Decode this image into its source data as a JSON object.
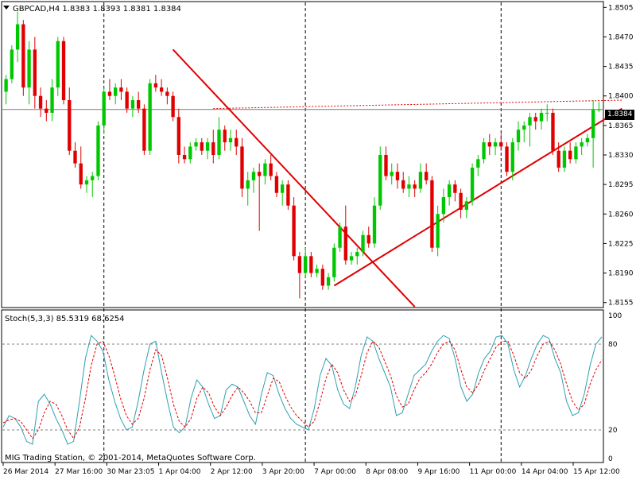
{
  "header": {
    "symbol_line": "GBPCAD,H4  1.8383 1.8393 1.8381 1.8384",
    "dropdown_icon": "triangle-down-icon"
  },
  "current_price_label": "1.8384",
  "indicator": {
    "label": "Stoch(5,3,3) 85.5319 68.6254",
    "levels": [
      "100",
      "80",
      "20",
      "0"
    ]
  },
  "copyright": "MIG Trading Station, © 2001-2014, MetaQuotes Software Corp.",
  "colors": {
    "background": "#ffffff",
    "bull": "#00c800",
    "bear": "#e00000",
    "trendline": "#e00000",
    "grid": "#000000",
    "stoch_main": "#2fa0b0",
    "stoch_signal": "#e00000",
    "price_line": "#708070"
  },
  "chart_data": {
    "type": "candlestick",
    "symbol": "GBPCAD",
    "timeframe": "H4",
    "ohlc_header": {
      "open": 1.8383,
      "high": 1.8393,
      "low": 1.8381,
      "close": 1.8384
    },
    "y_ticks": [
      "1.8505",
      "1.8470",
      "1.8435",
      "1.8400",
      "1.8365",
      "1.8330",
      "1.8295",
      "1.8260",
      "1.8225",
      "1.8190",
      "1.8155"
    ],
    "ylim": [
      1.815,
      1.851
    ],
    "x_ticks": [
      "26 Mar 2014",
      "27 Mar 16:00",
      "30 Mar 23:05",
      "1 Apr 04:00",
      "2 Apr 12:00",
      "3 Apr 20:00",
      "7 Apr 00:00",
      "8 Apr 08:00",
      "9 Apr 16:00",
      "11 Apr 00:00",
      "14 Apr 04:00",
      "15 Apr 12:00"
    ],
    "period_separators_after": [
      "27 Mar 16:00",
      "3 Apr 20:00",
      "11 Apr 00:00"
    ],
    "candles": [
      {
        "o": 1.8405,
        "h": 1.8425,
        "l": 1.839,
        "c": 1.842
      },
      {
        "o": 1.842,
        "h": 1.846,
        "l": 1.8415,
        "c": 1.8455
      },
      {
        "o": 1.8455,
        "h": 1.85,
        "l": 1.844,
        "c": 1.8485
      },
      {
        "o": 1.8485,
        "h": 1.849,
        "l": 1.84,
        "c": 1.841
      },
      {
        "o": 1.841,
        "h": 1.8465,
        "l": 1.839,
        "c": 1.8455
      },
      {
        "o": 1.8455,
        "h": 1.847,
        "l": 1.8385,
        "c": 1.84
      },
      {
        "o": 1.84,
        "h": 1.841,
        "l": 1.8375,
        "c": 1.8385
      },
      {
        "o": 1.8385,
        "h": 1.8395,
        "l": 1.837,
        "c": 1.838
      },
      {
        "o": 1.838,
        "h": 1.842,
        "l": 1.837,
        "c": 1.841
      },
      {
        "o": 1.841,
        "h": 1.847,
        "l": 1.84,
        "c": 1.8465
      },
      {
        "o": 1.8465,
        "h": 1.847,
        "l": 1.839,
        "c": 1.8395
      },
      {
        "o": 1.8395,
        "h": 1.841,
        "l": 1.833,
        "c": 1.8335
      },
      {
        "o": 1.8335,
        "h": 1.8345,
        "l": 1.8315,
        "c": 1.832
      },
      {
        "o": 1.832,
        "h": 1.834,
        "l": 1.829,
        "c": 1.8295
      },
      {
        "o": 1.8295,
        "h": 1.8305,
        "l": 1.8285,
        "c": 1.83
      },
      {
        "o": 1.83,
        "h": 1.831,
        "l": 1.828,
        "c": 1.8305
      },
      {
        "o": 1.8305,
        "h": 1.837,
        "l": 1.83,
        "c": 1.8365
      },
      {
        "o": 1.8365,
        "h": 1.841,
        "l": 1.8355,
        "c": 1.8405
      },
      {
        "o": 1.8405,
        "h": 1.842,
        "l": 1.8395,
        "c": 1.84
      },
      {
        "o": 1.84,
        "h": 1.8415,
        "l": 1.839,
        "c": 1.841
      },
      {
        "o": 1.841,
        "h": 1.842,
        "l": 1.8395,
        "c": 1.8405
      },
      {
        "o": 1.8405,
        "h": 1.841,
        "l": 1.838,
        "c": 1.8385
      },
      {
        "o": 1.8385,
        "h": 1.84,
        "l": 1.8375,
        "c": 1.8395
      },
      {
        "o": 1.8395,
        "h": 1.8405,
        "l": 1.838,
        "c": 1.8385
      },
      {
        "o": 1.8385,
        "h": 1.839,
        "l": 1.833,
        "c": 1.8335
      },
      {
        "o": 1.8335,
        "h": 1.842,
        "l": 1.833,
        "c": 1.8415
      },
      {
        "o": 1.8415,
        "h": 1.8425,
        "l": 1.8405,
        "c": 1.841
      },
      {
        "o": 1.841,
        "h": 1.842,
        "l": 1.84,
        "c": 1.8405
      },
      {
        "o": 1.8405,
        "h": 1.841,
        "l": 1.839,
        "c": 1.84
      },
      {
        "o": 1.84,
        "h": 1.8405,
        "l": 1.837,
        "c": 1.8375
      },
      {
        "o": 1.8375,
        "h": 1.8385,
        "l": 1.832,
        "c": 1.833
      },
      {
        "o": 1.833,
        "h": 1.834,
        "l": 1.832,
        "c": 1.8325
      },
      {
        "o": 1.8325,
        "h": 1.8345,
        "l": 1.832,
        "c": 1.834
      },
      {
        "o": 1.834,
        "h": 1.835,
        "l": 1.8335,
        "c": 1.8345
      },
      {
        "o": 1.8345,
        "h": 1.835,
        "l": 1.833,
        "c": 1.8335
      },
      {
        "o": 1.8335,
        "h": 1.835,
        "l": 1.8325,
        "c": 1.8345
      },
      {
        "o": 1.8345,
        "h": 1.836,
        "l": 1.832,
        "c": 1.833
      },
      {
        "o": 1.833,
        "h": 1.8375,
        "l": 1.8325,
        "c": 1.836
      },
      {
        "o": 1.836,
        "h": 1.8365,
        "l": 1.8335,
        "c": 1.8345
      },
      {
        "o": 1.8345,
        "h": 1.836,
        "l": 1.8335,
        "c": 1.835
      },
      {
        "o": 1.835,
        "h": 1.836,
        "l": 1.833,
        "c": 1.834
      },
      {
        "o": 1.834,
        "h": 1.835,
        "l": 1.828,
        "c": 1.829
      },
      {
        "o": 1.829,
        "h": 1.831,
        "l": 1.827,
        "c": 1.83
      },
      {
        "o": 1.83,
        "h": 1.8315,
        "l": 1.8285,
        "c": 1.831
      },
      {
        "o": 1.831,
        "h": 1.832,
        "l": 1.824,
        "c": 1.8305
      },
      {
        "o": 1.8305,
        "h": 1.8325,
        "l": 1.8295,
        "c": 1.832
      },
      {
        "o": 1.832,
        "h": 1.833,
        "l": 1.83,
        "c": 1.8305
      },
      {
        "o": 1.8305,
        "h": 1.831,
        "l": 1.828,
        "c": 1.8285
      },
      {
        "o": 1.8285,
        "h": 1.83,
        "l": 1.827,
        "c": 1.8295
      },
      {
        "o": 1.8295,
        "h": 1.83,
        "l": 1.8265,
        "c": 1.827
      },
      {
        "o": 1.827,
        "h": 1.828,
        "l": 1.8205,
        "c": 1.821
      },
      {
        "o": 1.821,
        "h": 1.8215,
        "l": 1.816,
        "c": 1.819
      },
      {
        "o": 1.819,
        "h": 1.822,
        "l": 1.8185,
        "c": 1.821
      },
      {
        "o": 1.821,
        "h": 1.8215,
        "l": 1.8185,
        "c": 1.819
      },
      {
        "o": 1.819,
        "h": 1.82,
        "l": 1.8185,
        "c": 1.8195
      },
      {
        "o": 1.8195,
        "h": 1.82,
        "l": 1.817,
        "c": 1.8175
      },
      {
        "o": 1.8175,
        "h": 1.819,
        "l": 1.817,
        "c": 1.8185
      },
      {
        "o": 1.8185,
        "h": 1.8225,
        "l": 1.818,
        "c": 1.822
      },
      {
        "o": 1.822,
        "h": 1.825,
        "l": 1.8215,
        "c": 1.8245
      },
      {
        "o": 1.8245,
        "h": 1.827,
        "l": 1.82,
        "c": 1.8205
      },
      {
        "o": 1.8205,
        "h": 1.8215,
        "l": 1.82,
        "c": 1.821
      },
      {
        "o": 1.821,
        "h": 1.822,
        "l": 1.82,
        "c": 1.8215
      },
      {
        "o": 1.8215,
        "h": 1.824,
        "l": 1.821,
        "c": 1.8235
      },
      {
        "o": 1.8235,
        "h": 1.8245,
        "l": 1.822,
        "c": 1.8225
      },
      {
        "o": 1.8225,
        "h": 1.828,
        "l": 1.822,
        "c": 1.827
      },
      {
        "o": 1.827,
        "h": 1.834,
        "l": 1.8265,
        "c": 1.833
      },
      {
        "o": 1.833,
        "h": 1.834,
        "l": 1.83,
        "c": 1.8305
      },
      {
        "o": 1.8305,
        "h": 1.832,
        "l": 1.8295,
        "c": 1.831
      },
      {
        "o": 1.831,
        "h": 1.832,
        "l": 1.829,
        "c": 1.83
      },
      {
        "o": 1.83,
        "h": 1.831,
        "l": 1.8285,
        "c": 1.829
      },
      {
        "o": 1.829,
        "h": 1.8305,
        "l": 1.828,
        "c": 1.8295
      },
      {
        "o": 1.8295,
        "h": 1.83,
        "l": 1.828,
        "c": 1.829
      },
      {
        "o": 1.829,
        "h": 1.832,
        "l": 1.8285,
        "c": 1.831
      },
      {
        "o": 1.831,
        "h": 1.832,
        "l": 1.8295,
        "c": 1.83
      },
      {
        "o": 1.83,
        "h": 1.8305,
        "l": 1.8215,
        "c": 1.822
      },
      {
        "o": 1.822,
        "h": 1.827,
        "l": 1.821,
        "c": 1.826
      },
      {
        "o": 1.826,
        "h": 1.829,
        "l": 1.825,
        "c": 1.828
      },
      {
        "o": 1.828,
        "h": 1.83,
        "l": 1.827,
        "c": 1.8295
      },
      {
        "o": 1.8295,
        "h": 1.83,
        "l": 1.8275,
        "c": 1.8285
      },
      {
        "o": 1.8285,
        "h": 1.829,
        "l": 1.8255,
        "c": 1.8265
      },
      {
        "o": 1.8265,
        "h": 1.828,
        "l": 1.8255,
        "c": 1.8275
      },
      {
        "o": 1.8275,
        "h": 1.832,
        "l": 1.827,
        "c": 1.8315
      },
      {
        "o": 1.8315,
        "h": 1.833,
        "l": 1.8305,
        "c": 1.8325
      },
      {
        "o": 1.8325,
        "h": 1.835,
        "l": 1.832,
        "c": 1.8345
      },
      {
        "o": 1.8345,
        "h": 1.8355,
        "l": 1.833,
        "c": 1.834
      },
      {
        "o": 1.834,
        "h": 1.835,
        "l": 1.833,
        "c": 1.8345
      },
      {
        "o": 1.8345,
        "h": 1.8355,
        "l": 1.8335,
        "c": 1.834
      },
      {
        "o": 1.834,
        "h": 1.8345,
        "l": 1.8305,
        "c": 1.831
      },
      {
        "o": 1.831,
        "h": 1.835,
        "l": 1.83,
        "c": 1.8345
      },
      {
        "o": 1.8345,
        "h": 1.837,
        "l": 1.8335,
        "c": 1.836
      },
      {
        "o": 1.836,
        "h": 1.837,
        "l": 1.8345,
        "c": 1.8365
      },
      {
        "o": 1.8365,
        "h": 1.838,
        "l": 1.834,
        "c": 1.8375
      },
      {
        "o": 1.8375,
        "h": 1.838,
        "l": 1.836,
        "c": 1.837
      },
      {
        "o": 1.837,
        "h": 1.8385,
        "l": 1.836,
        "c": 1.838
      },
      {
        "o": 1.838,
        "h": 1.839,
        "l": 1.837,
        "c": 1.838
      },
      {
        "o": 1.838,
        "h": 1.8385,
        "l": 1.833,
        "c": 1.8335
      },
      {
        "o": 1.8335,
        "h": 1.8345,
        "l": 1.831,
        "c": 1.8315
      },
      {
        "o": 1.8315,
        "h": 1.834,
        "l": 1.831,
        "c": 1.8335
      },
      {
        "o": 1.8335,
        "h": 1.8345,
        "l": 1.832,
        "c": 1.8325
      },
      {
        "o": 1.8325,
        "h": 1.8345,
        "l": 1.832,
        "c": 1.834
      },
      {
        "o": 1.834,
        "h": 1.835,
        "l": 1.833,
        "c": 1.8345
      },
      {
        "o": 1.8345,
        "h": 1.8355,
        "l": 1.834,
        "c": 1.835
      },
      {
        "o": 1.835,
        "h": 1.8395,
        "l": 1.8315,
        "c": 1.8384
      },
      {
        "o": 1.8383,
        "h": 1.8393,
        "l": 1.8381,
        "c": 1.8384
      }
    ],
    "current_price": 1.8384,
    "stochastic": {
      "name": "Stoch(5,3,3)",
      "main_last": 85.5319,
      "signal_last": 68.6254,
      "levels": [
        80,
        20
      ],
      "ylim": [
        0,
        100
      ],
      "main": [
        22,
        30,
        28,
        22,
        12,
        10,
        40,
        45,
        38,
        28,
        20,
        10,
        12,
        40,
        70,
        86,
        82,
        75,
        55,
        40,
        28,
        20,
        22,
        40,
        62,
        80,
        82,
        60,
        40,
        22,
        18,
        22,
        42,
        55,
        50,
        38,
        28,
        30,
        48,
        52,
        50,
        40,
        30,
        24,
        45,
        60,
        58,
        45,
        35,
        28,
        24,
        22,
        20,
        35,
        58,
        70,
        65,
        48,
        38,
        35,
        50,
        72,
        85,
        82,
        70,
        60,
        50,
        30,
        32,
        45,
        58,
        62,
        66,
        75,
        82,
        86,
        84,
        70,
        50,
        40,
        45,
        60,
        70,
        75,
        85,
        86,
        80,
        62,
        50,
        58,
        70,
        80,
        86,
        84,
        70,
        60,
        40,
        30,
        32,
        45,
        65,
        80,
        85
      ],
      "signal": [
        25,
        27,
        28,
        26,
        20,
        14,
        20,
        32,
        40,
        38,
        30,
        20,
        14,
        22,
        42,
        65,
        80,
        82,
        72,
        58,
        42,
        30,
        24,
        28,
        42,
        62,
        76,
        72,
        56,
        38,
        26,
        22,
        28,
        42,
        50,
        46,
        36,
        30,
        36,
        44,
        50,
        46,
        40,
        32,
        32,
        44,
        56,
        54,
        44,
        36,
        30,
        26,
        22,
        26,
        40,
        56,
        66,
        60,
        48,
        40,
        44,
        58,
        74,
        82,
        78,
        68,
        58,
        44,
        36,
        38,
        48,
        56,
        60,
        66,
        74,
        80,
        82,
        76,
        62,
        50,
        46,
        52,
        62,
        70,
        78,
        82,
        82,
        72,
        60,
        56,
        62,
        72,
        80,
        82,
        76,
        66,
        52,
        40,
        34,
        38,
        52,
        62,
        69
      ]
    },
    "trendlines": [
      {
        "name": "descending-trendline",
        "from": {
          "bar": 29,
          "price": 1.8455
        },
        "to": {
          "bar": 71,
          "price": 1.815
        }
      },
      {
        "name": "ascending-trendline",
        "from": {
          "bar": 57,
          "price": 1.8175
        },
        "to": {
          "bar": 107,
          "price": 1.8385
        }
      },
      {
        "name": "horizontal-dotted-line",
        "from": {
          "bar": 36,
          "price": 1.8385
        },
        "to": {
          "bar": 107,
          "price": 1.8395
        }
      }
    ]
  }
}
